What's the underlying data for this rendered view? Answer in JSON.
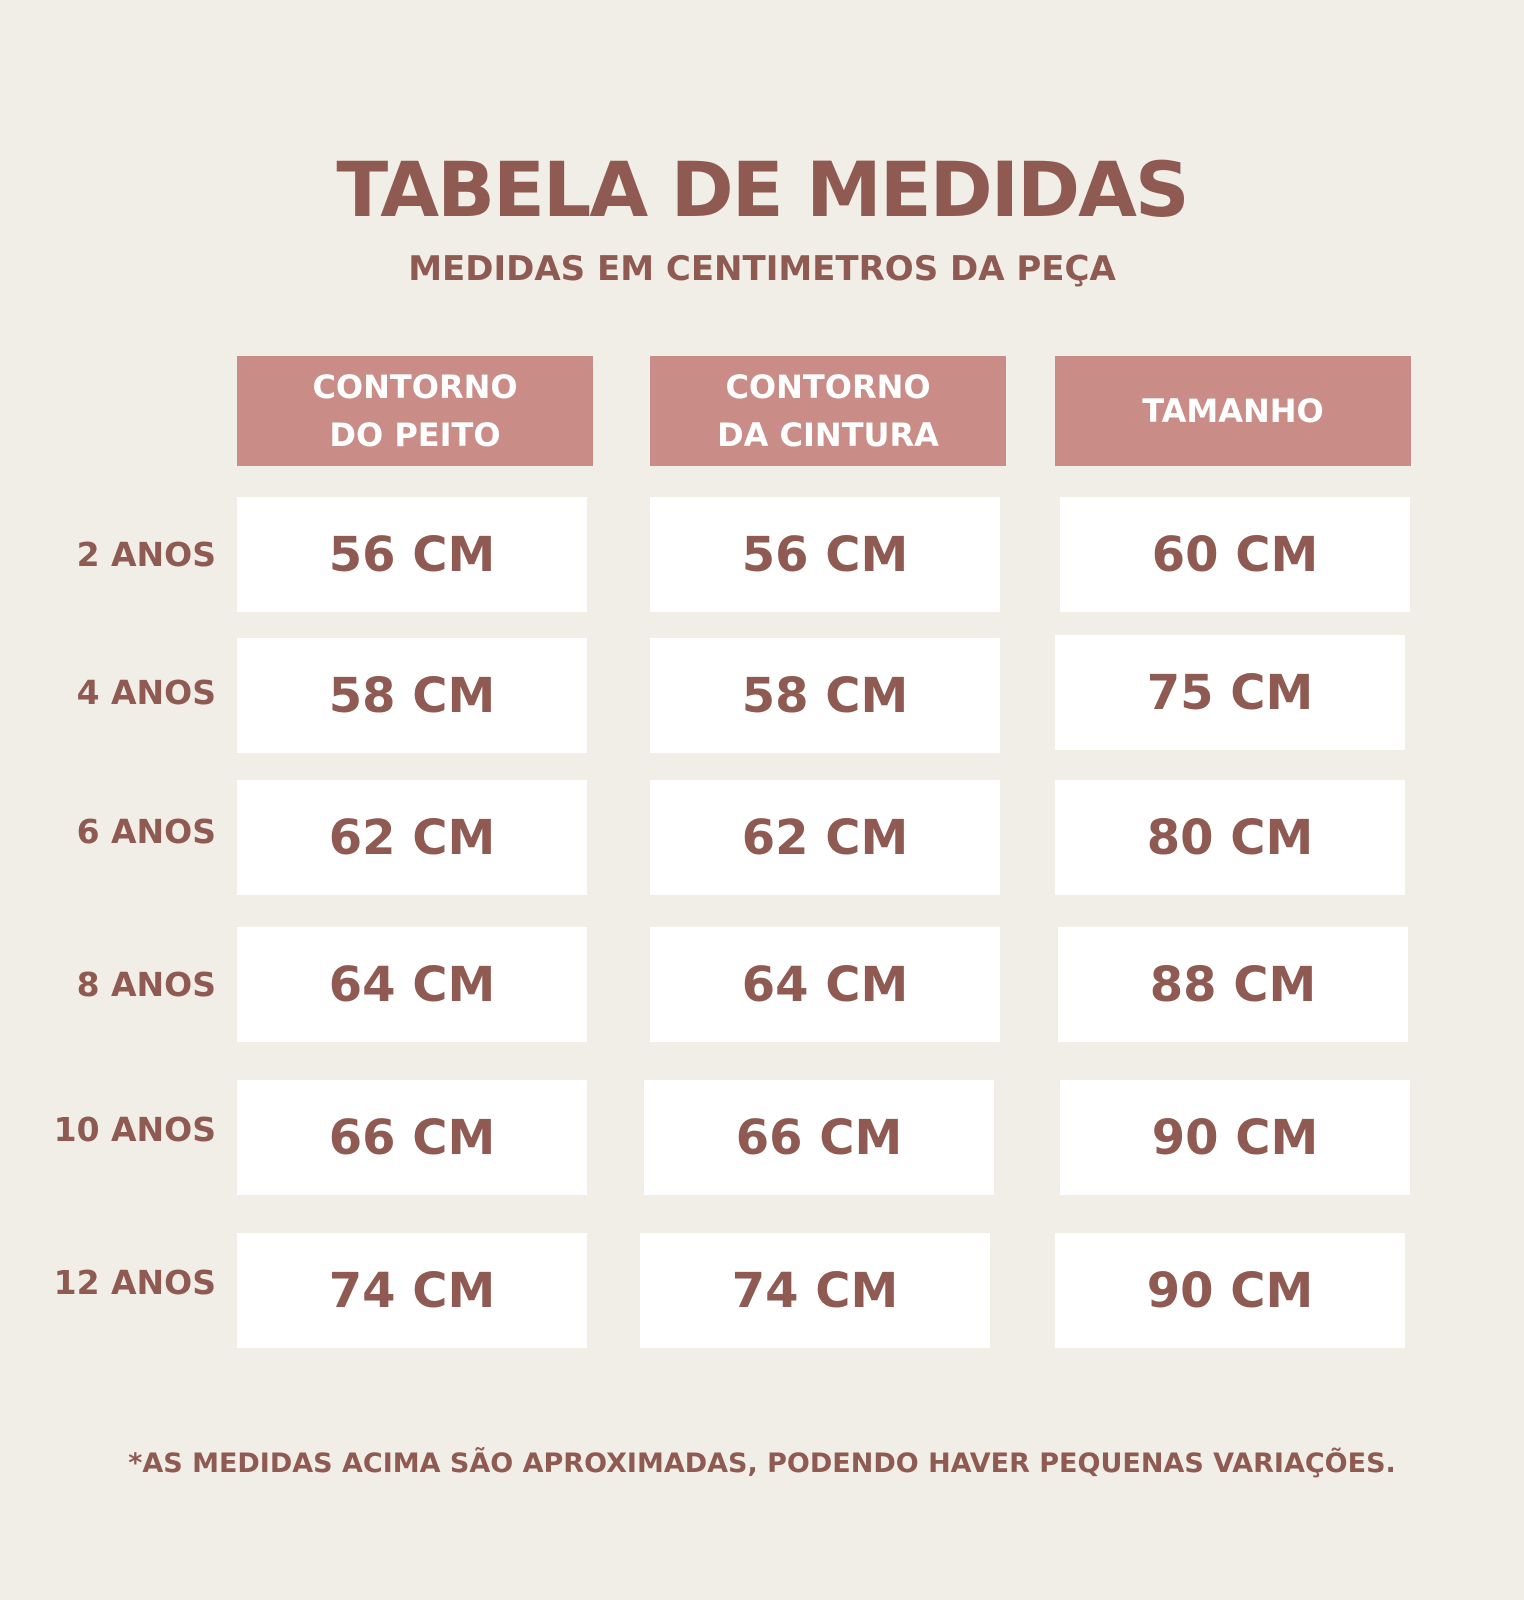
{
  "title": "TABELA DE MEDIDAS",
  "subtitle": "MEDIDAS EM CENTIMETROS DA PEÇA",
  "columns": [
    {
      "line1": "CONTORNO",
      "line2": "DO PEITO"
    },
    {
      "line1": "CONTORNO",
      "line2": "DA CINTURA"
    },
    {
      "line1": "TAMANHO",
      "line2": ""
    }
  ],
  "rows": [
    {
      "label": "2 ANOS",
      "values": [
        "56 CM",
        "56 CM",
        "60 CM"
      ]
    },
    {
      "label": "4 ANOS",
      "values": [
        "58 CM",
        "58 CM",
        "75 CM"
      ]
    },
    {
      "label": "6 ANOS",
      "values": [
        "62 CM",
        "62 CM",
        "80 CM"
      ]
    },
    {
      "label": "8 ANOS",
      "values": [
        "64 CM",
        "64 CM",
        "88 CM"
      ]
    },
    {
      "label": "10 ANOS",
      "values": [
        "66 CM",
        "66 CM",
        "90 CM"
      ]
    },
    {
      "label": "12 ANOS",
      "values": [
        "74 CM",
        "74 CM",
        "90 CM"
      ]
    }
  ],
  "footnote": "*AS MEDIDAS ACIMA SÃO APROXIMADAS, PODENDO HAVER PEQUENAS VARIAÇÕES.",
  "colors": {
    "background": "#f0eee6",
    "text": "#8e5a52",
    "header_fill": "#c98c86",
    "cell_fill": "#ffffff"
  }
}
